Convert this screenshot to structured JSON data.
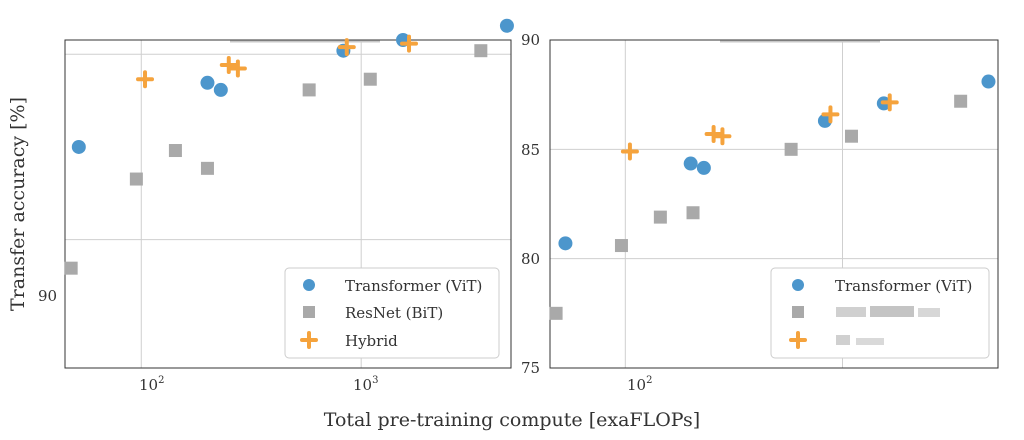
{
  "chart_data": [
    {
      "type": "scatter",
      "x_scale": "log",
      "xlim": [
        45,
        4800
      ],
      "ylim": [
        88.2,
        92.8
      ],
      "y_ticks": [
        90
      ],
      "ylabel": "Transfer accuracy [%]",
      "grid": true,
      "legend_position": "bottom-right",
      "series": [
        {
          "name": "Transformer (ViT)",
          "color": "#4c96cc",
          "marker": "circle",
          "points": [
            [
              52,
              91.3
            ],
            [
              200,
              92.2
            ],
            [
              230,
              92.1
            ],
            [
              830,
              92.65
            ],
            [
              1550,
              92.8
            ],
            [
              4600,
              93.0
            ]
          ]
        },
        {
          "name": "ResNet (BiT)",
          "color": "#a9a9a9",
          "marker": "square",
          "points": [
            [
              48,
              89.6
            ],
            [
              95,
              90.85
            ],
            [
              143,
              91.25
            ],
            [
              200,
              91.0
            ],
            [
              580,
              92.1
            ],
            [
              1100,
              92.25
            ],
            [
              3500,
              92.65
            ]
          ]
        },
        {
          "name": "Hybrid",
          "color": "#f5a33d",
          "marker": "plus",
          "points": [
            [
              104,
              92.25
            ],
            [
              250,
              92.45
            ],
            [
              275,
              92.4
            ],
            [
              860,
              92.7
            ],
            [
              1650,
              92.75
            ]
          ]
        }
      ]
    },
    {
      "type": "scatter",
      "x_scale": "log",
      "xlim": [
        45,
        5200
      ],
      "ylim": [
        75,
        90
      ],
      "y_ticks": [
        75,
        80,
        85,
        90
      ],
      "grid": true,
      "legend_position": "bottom-right",
      "series": [
        {
          "name": "Transformer (ViT)",
          "color": "#4c96cc",
          "marker": "circle",
          "points": [
            [
              53,
              80.7
            ],
            [
              200,
              84.35
            ],
            [
              230,
              84.15
            ],
            [
              830,
              86.3
            ],
            [
              1550,
              87.1
            ],
            [
              4700,
              88.1
            ]
          ]
        },
        {
          "name": "",
          "color": "#a9a9a9",
          "marker": "square",
          "points": [
            [
              48,
              77.5
            ],
            [
              96,
              80.6
            ],
            [
              145,
              81.9
            ],
            [
              205,
              82.1
            ],
            [
              580,
              85.0
            ],
            [
              1100,
              85.6
            ],
            [
              3500,
              87.2
            ]
          ]
        },
        {
          "name": "",
          "color": "#f5a33d",
          "marker": "plus",
          "points": [
            [
              105,
              84.9
            ],
            [
              255,
              85.7
            ],
            [
              280,
              85.6
            ],
            [
              880,
              86.6
            ],
            [
              1650,
              87.15
            ]
          ]
        }
      ]
    }
  ],
  "axes": {
    "xlabel": "Total pre-training compute [exaFLOPs]",
    "ylabel": "Transfer accuracy [%]",
    "tick_base": "10",
    "tick_exp_2": "2",
    "tick_exp_3": "3",
    "left_ytick": "90",
    "right_yticks": [
      "90",
      "85",
      "80",
      "75"
    ]
  },
  "legend_left": [
    "Transformer (ViT)",
    "ResNet (BiT)",
    "Hybrid"
  ],
  "legend_right": [
    "Transformer (ViT)"
  ]
}
